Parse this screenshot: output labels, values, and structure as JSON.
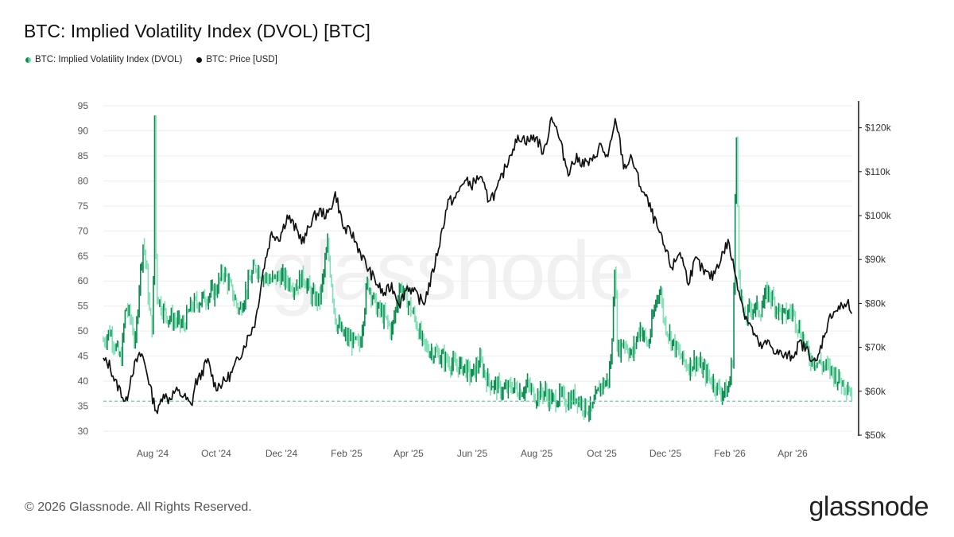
{
  "title": "BTC: Implied Volatility Index (DVOL) [BTC]",
  "legend": [
    {
      "label": "BTC: Implied Volatility Index (DVOL)",
      "color": "#1db36e"
    },
    {
      "label": "BTC: Price [USD]",
      "color": "#111111"
    }
  ],
  "footer": {
    "copyright": "© 2026 Glassnode. All Rights Reserved.",
    "brand": "glassnode",
    "watermark": "glassnode"
  },
  "colors": {
    "dvol_up": "#0d8a4f",
    "dvol_down": "#7fe0b4",
    "price": "#111111",
    "reference": "#5fd3a0",
    "grid": "#eeeeee"
  },
  "chart_data": {
    "type": "line",
    "x_labels": [
      "Aug '24",
      "Oct '24",
      "Dec '24",
      "Feb '25",
      "Apr '25",
      "Jun '25",
      "Aug '25",
      "Oct '25",
      "Dec '25",
      "Feb '26",
      "Apr '26"
    ],
    "y_left": {
      "min": 30,
      "max": 95,
      "ticks": [
        "30",
        "35",
        "40",
        "45",
        "50",
        "55",
        "60",
        "65",
        "70",
        "75",
        "80",
        "85",
        "90",
        "95"
      ]
    },
    "y_right": {
      "min": 50000,
      "max": 125000,
      "ticks": [
        "$50k",
        "$60k",
        "$70k",
        "$80k",
        "$90k",
        "$100k",
        "$110k",
        "$120k"
      ]
    },
    "reference_line": 36,
    "grid": "horizontal",
    "series": [
      {
        "name": "BTC: Implied Volatility Index (DVOL)",
        "axis": "left",
        "style": "candles",
        "points": [
          [
            0,
            48
          ],
          [
            8,
            50
          ],
          [
            15,
            47
          ],
          [
            22,
            44
          ],
          [
            28,
            55
          ],
          [
            35,
            52
          ],
          [
            40,
            47
          ],
          [
            45,
            60
          ],
          [
            50,
            68
          ],
          [
            54,
            62
          ],
          [
            58,
            53
          ],
          [
            62,
            50
          ],
          [
            64,
            93
          ],
          [
            66,
            58
          ],
          [
            72,
            55
          ],
          [
            80,
            53
          ],
          [
            90,
            52
          ],
          [
            100,
            51
          ],
          [
            110,
            55
          ],
          [
            120,
            56
          ],
          [
            130,
            57
          ],
          [
            140,
            58
          ],
          [
            150,
            62
          ],
          [
            160,
            58
          ],
          [
            170,
            54
          ],
          [
            180,
            59
          ],
          [
            190,
            63
          ],
          [
            200,
            61
          ],
          [
            210,
            60
          ],
          [
            220,
            61
          ],
          [
            230,
            60
          ],
          [
            240,
            59
          ],
          [
            250,
            61
          ],
          [
            260,
            57
          ],
          [
            270,
            56
          ],
          [
            280,
            67
          ],
          [
            290,
            52
          ],
          [
            300,
            49
          ],
          [
            310,
            48
          ],
          [
            320,
            47
          ],
          [
            330,
            60
          ],
          [
            340,
            55
          ],
          [
            350,
            53
          ],
          [
            360,
            50
          ],
          [
            370,
            59
          ],
          [
            380,
            56
          ],
          [
            390,
            52
          ],
          [
            400,
            47
          ],
          [
            410,
            46
          ],
          [
            420,
            45
          ],
          [
            430,
            44
          ],
          [
            440,
            43
          ],
          [
            450,
            43
          ],
          [
            460,
            41
          ],
          [
            470,
            44
          ],
          [
            480,
            40
          ],
          [
            490,
            39
          ],
          [
            500,
            38
          ],
          [
            510,
            39
          ],
          [
            520,
            38
          ],
          [
            530,
            39
          ],
          [
            540,
            37
          ],
          [
            550,
            38
          ],
          [
            560,
            36
          ],
          [
            570,
            37
          ],
          [
            580,
            36
          ],
          [
            590,
            37
          ],
          [
            600,
            35
          ],
          [
            610,
            34
          ],
          [
            620,
            39
          ],
          [
            630,
            40
          ],
          [
            635,
            46
          ],
          [
            638,
            65
          ],
          [
            642,
            46
          ],
          [
            650,
            48
          ],
          [
            660,
            45
          ],
          [
            670,
            51
          ],
          [
            680,
            47
          ],
          [
            690,
            56
          ],
          [
            695,
            59
          ],
          [
            700,
            52
          ],
          [
            710,
            48
          ],
          [
            720,
            45
          ],
          [
            730,
            43
          ],
          [
            740,
            44
          ],
          [
            750,
            42
          ],
          [
            760,
            40
          ],
          [
            770,
            38
          ],
          [
            780,
            38
          ],
          [
            786,
            45
          ],
          [
            790,
            90
          ],
          [
            794,
            60
          ],
          [
            800,
            52
          ],
          [
            810,
            55
          ],
          [
            820,
            54
          ],
          [
            830,
            58
          ],
          [
            840,
            55
          ],
          [
            850,
            53
          ],
          [
            860,
            54
          ],
          [
            870,
            50
          ],
          [
            875,
            48
          ],
          [
            880,
            45
          ],
          [
            890,
            44
          ],
          [
            900,
            43
          ],
          [
            910,
            42
          ],
          [
            920,
            40
          ],
          [
            930,
            39
          ],
          [
            935,
            37
          ]
        ]
      },
      {
        "name": "BTC: Price [USD]",
        "axis": "right",
        "style": "line",
        "points": [
          [
            0,
            67000
          ],
          [
            8,
            66000
          ],
          [
            15,
            62000
          ],
          [
            22,
            60000
          ],
          [
            28,
            57000
          ],
          [
            35,
            64000
          ],
          [
            42,
            67000
          ],
          [
            48,
            68500
          ],
          [
            55,
            64000
          ],
          [
            62,
            58000
          ],
          [
            68,
            55000
          ],
          [
            75,
            60000
          ],
          [
            80,
            58000
          ],
          [
            90,
            60000
          ],
          [
            100,
            59000
          ],
          [
            110,
            56500
          ],
          [
            115,
            62000
          ],
          [
            120,
            63000
          ],
          [
            130,
            67000
          ],
          [
            140,
            61000
          ],
          [
            150,
            62000
          ],
          [
            160,
            64000
          ],
          [
            170,
            68000
          ],
          [
            180,
            72000
          ],
          [
            190,
            76000
          ],
          [
            200,
            88000
          ],
          [
            210,
            96000
          ],
          [
            220,
            95000
          ],
          [
            230,
            100000
          ],
          [
            240,
            97000
          ],
          [
            250,
            94000
          ],
          [
            260,
            99000
          ],
          [
            270,
            101000
          ],
          [
            280,
            100000
          ],
          [
            290,
            105000
          ],
          [
            300,
            97000
          ],
          [
            310,
            96000
          ],
          [
            320,
            92000
          ],
          [
            330,
            88000
          ],
          [
            340,
            85000
          ],
          [
            350,
            82000
          ],
          [
            360,
            84000
          ],
          [
            370,
            80000
          ],
          [
            380,
            84000
          ],
          [
            390,
            82000
          ],
          [
            400,
            80000
          ],
          [
            410,
            86000
          ],
          [
            420,
            94000
          ],
          [
            430,
            103000
          ],
          [
            440,
            104000
          ],
          [
            450,
            108000
          ],
          [
            460,
            107000
          ],
          [
            470,
            109000
          ],
          [
            480,
            104000
          ],
          [
            490,
            105000
          ],
          [
            500,
            110000
          ],
          [
            510,
            115000
          ],
          [
            520,
            118000
          ],
          [
            530,
            117000
          ],
          [
            540,
            118000
          ],
          [
            550,
            114000
          ],
          [
            560,
            123000
          ],
          [
            570,
            117000
          ],
          [
            580,
            110000
          ],
          [
            590,
            113000
          ],
          [
            600,
            112000
          ],
          [
            610,
            112000
          ],
          [
            620,
            116000
          ],
          [
            630,
            113000
          ],
          [
            640,
            122000
          ],
          [
            650,
            111000
          ],
          [
            660,
            113000
          ],
          [
            670,
            107000
          ],
          [
            680,
            103000
          ],
          [
            690,
            98000
          ],
          [
            700,
            93000
          ],
          [
            710,
            88000
          ],
          [
            720,
            92000
          ],
          [
            730,
            85000
          ],
          [
            740,
            90000
          ],
          [
            750,
            87000
          ],
          [
            760,
            86000
          ],
          [
            770,
            90000
          ],
          [
            780,
            94000
          ],
          [
            790,
            86000
          ],
          [
            800,
            78000
          ],
          [
            810,
            74000
          ],
          [
            820,
            70000
          ],
          [
            830,
            71000
          ],
          [
            840,
            69000
          ],
          [
            850,
            68000
          ],
          [
            860,
            68000
          ],
          [
            870,
            71000
          ],
          [
            880,
            69000
          ],
          [
            890,
            66000
          ],
          [
            900,
            73000
          ],
          [
            910,
            78000
          ],
          [
            920,
            79000
          ],
          [
            930,
            80000
          ],
          [
            935,
            76000
          ]
        ]
      }
    ]
  }
}
